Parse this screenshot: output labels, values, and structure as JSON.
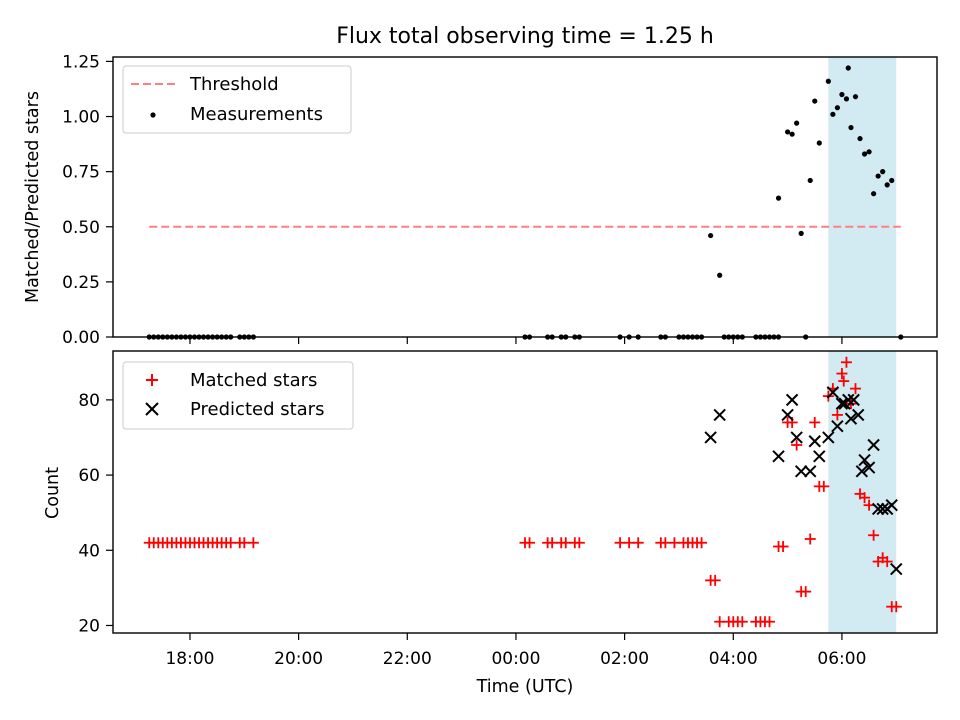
{
  "figure": {
    "title": "Flux total observing time = 1.25 h",
    "xlabel": "Time (UTC)"
  },
  "colors": {
    "threshold": "#ff7f7f",
    "measurements": "#000000",
    "matched": "#ff0000",
    "predicted": "#000000",
    "highlight": "#add8e6"
  },
  "chart_data": [
    {
      "type": "scatter",
      "ylabel": "Matched/Predicted stars",
      "ylim": [
        0,
        1.27
      ],
      "yticks": [
        0,
        0.25,
        0.5,
        0.75,
        1.0,
        1.25
      ],
      "ytick_labels": [
        "0.00",
        "0.25",
        "0.50",
        "0.75",
        "1.00",
        "1.25"
      ],
      "legend": {
        "placement": "top-left",
        "entries": [
          "Threshold",
          "Measurements"
        ]
      },
      "highlight_span": [
        "05:45",
        "07:00"
      ],
      "threshold": {
        "name": "Threshold",
        "y": 0.5,
        "x": [
          "17:15",
          "07:05"
        ]
      },
      "series": [
        {
          "name": "Measurements",
          "points": [
            [
              "17:15",
              0
            ],
            [
              "17:20",
              0
            ],
            [
              "17:25",
              0
            ],
            [
              "17:30",
              0
            ],
            [
              "17:35",
              0
            ],
            [
              "17:40",
              0
            ],
            [
              "17:45",
              0
            ],
            [
              "17:50",
              0
            ],
            [
              "17:55",
              0
            ],
            [
              "18:00",
              0
            ],
            [
              "18:05",
              0
            ],
            [
              "18:10",
              0
            ],
            [
              "18:15",
              0
            ],
            [
              "18:20",
              0
            ],
            [
              "18:25",
              0
            ],
            [
              "18:30",
              0
            ],
            [
              "18:35",
              0
            ],
            [
              "18:40",
              0
            ],
            [
              "18:45",
              0
            ],
            [
              "18:55",
              0
            ],
            [
              "19:00",
              0
            ],
            [
              "19:05",
              0
            ],
            [
              "19:10",
              0
            ],
            [
              "00:10",
              0
            ],
            [
              "00:15",
              0
            ],
            [
              "00:35",
              0
            ],
            [
              "00:40",
              0
            ],
            [
              "00:50",
              0
            ],
            [
              "00:55",
              0
            ],
            [
              "01:05",
              0
            ],
            [
              "01:10",
              0
            ],
            [
              "01:55",
              0
            ],
            [
              "02:05",
              0
            ],
            [
              "02:15",
              0
            ],
            [
              "02:40",
              0
            ],
            [
              "02:45",
              0
            ],
            [
              "03:00",
              0
            ],
            [
              "03:05",
              0
            ],
            [
              "03:10",
              0
            ],
            [
              "03:15",
              0
            ],
            [
              "03:20",
              0
            ],
            [
              "03:25",
              0
            ],
            [
              "03:35",
              0.46
            ],
            [
              "03:45",
              0.28
            ],
            [
              "03:50",
              0
            ],
            [
              "03:55",
              0
            ],
            [
              "04:00",
              0
            ],
            [
              "04:05",
              0
            ],
            [
              "04:10",
              0
            ],
            [
              "04:25",
              0
            ],
            [
              "04:30",
              0
            ],
            [
              "04:35",
              0
            ],
            [
              "04:40",
              0
            ],
            [
              "04:45",
              0
            ],
            [
              "04:50",
              0
            ],
            [
              "05:20",
              0
            ],
            [
              "04:50",
              0.63
            ],
            [
              "05:00",
              0.93
            ],
            [
              "05:05",
              0.92
            ],
            [
              "05:10",
              0.97
            ],
            [
              "05:15",
              0.47
            ],
            [
              "05:25",
              0.71
            ],
            [
              "05:30",
              1.07
            ],
            [
              "05:35",
              0.88
            ],
            [
              "05:45",
              1.16
            ],
            [
              "05:50",
              1.01
            ],
            [
              "05:55",
              1.04
            ],
            [
              "06:00",
              1.1
            ],
            [
              "06:05",
              1.08
            ],
            [
              "06:07",
              1.22
            ],
            [
              "06:10",
              0.95
            ],
            [
              "06:15",
              1.09
            ],
            [
              "06:20",
              0.9
            ],
            [
              "06:25",
              0.83
            ],
            [
              "06:30",
              0.84
            ],
            [
              "06:35",
              0.65
            ],
            [
              "06:40",
              0.73
            ],
            [
              "06:45",
              0.75
            ],
            [
              "06:50",
              0.69
            ],
            [
              "06:55",
              0.71
            ],
            [
              "07:05",
              0
            ]
          ]
        }
      ]
    },
    {
      "type": "scatter",
      "ylabel": "Count",
      "ylim": [
        18,
        93
      ],
      "yticks": [
        20,
        40,
        60,
        80
      ],
      "xticks": [
        "18:00",
        "20:00",
        "22:00",
        "00:00",
        "02:00",
        "04:00",
        "06:00"
      ],
      "xlim": [
        "16:35",
        "07:45"
      ],
      "legend": {
        "placement": "top-left",
        "entries": [
          "Matched stars",
          "Predicted stars"
        ]
      },
      "highlight_span": [
        "05:45",
        "07:00"
      ],
      "series": [
        {
          "name": "Matched stars",
          "marker": "plus",
          "points": [
            [
              "17:15",
              42
            ],
            [
              "17:20",
              42
            ],
            [
              "17:25",
              42
            ],
            [
              "17:30",
              42
            ],
            [
              "17:35",
              42
            ],
            [
              "17:40",
              42
            ],
            [
              "17:45",
              42
            ],
            [
              "17:50",
              42
            ],
            [
              "17:55",
              42
            ],
            [
              "18:00",
              42
            ],
            [
              "18:05",
              42
            ],
            [
              "18:10",
              42
            ],
            [
              "18:15",
              42
            ],
            [
              "18:20",
              42
            ],
            [
              "18:25",
              42
            ],
            [
              "18:30",
              42
            ],
            [
              "18:35",
              42
            ],
            [
              "18:40",
              42
            ],
            [
              "18:45",
              42
            ],
            [
              "18:55",
              42
            ],
            [
              "19:00",
              42
            ],
            [
              "19:10",
              42
            ],
            [
              "00:10",
              42
            ],
            [
              "00:15",
              42
            ],
            [
              "00:35",
              42
            ],
            [
              "00:40",
              42
            ],
            [
              "00:50",
              42
            ],
            [
              "00:55",
              42
            ],
            [
              "01:05",
              42
            ],
            [
              "01:10",
              42
            ],
            [
              "01:55",
              42
            ],
            [
              "02:05",
              42
            ],
            [
              "02:15",
              42
            ],
            [
              "02:40",
              42
            ],
            [
              "02:45",
              42
            ],
            [
              "02:55",
              42
            ],
            [
              "03:05",
              42
            ],
            [
              "03:10",
              42
            ],
            [
              "03:15",
              42
            ],
            [
              "03:20",
              42
            ],
            [
              "03:25",
              42
            ],
            [
              "03:35",
              32
            ],
            [
              "03:40",
              32
            ],
            [
              "03:45",
              21
            ],
            [
              "03:55",
              21
            ],
            [
              "04:00",
              21
            ],
            [
              "04:05",
              21
            ],
            [
              "04:10",
              21
            ],
            [
              "04:25",
              21
            ],
            [
              "04:30",
              21
            ],
            [
              "04:35",
              21
            ],
            [
              "04:40",
              21
            ],
            [
              "04:50",
              41
            ],
            [
              "04:55",
              41
            ],
            [
              "05:00",
              74
            ],
            [
              "05:05",
              74
            ],
            [
              "05:10",
              68
            ],
            [
              "05:15",
              29
            ],
            [
              "05:20",
              29
            ],
            [
              "05:25",
              43
            ],
            [
              "05:30",
              74
            ],
            [
              "05:35",
              57
            ],
            [
              "05:40",
              57
            ],
            [
              "05:45",
              81
            ],
            [
              "05:50",
              83
            ],
            [
              "05:55",
              76
            ],
            [
              "06:00",
              87
            ],
            [
              "06:02",
              85
            ],
            [
              "06:05",
              90
            ],
            [
              "06:10",
              79
            ],
            [
              "06:15",
              83
            ],
            [
              "06:20",
              55
            ],
            [
              "06:25",
              54
            ],
            [
              "06:30",
              52
            ],
            [
              "06:35",
              44
            ],
            [
              "06:40",
              37
            ],
            [
              "06:45",
              38
            ],
            [
              "06:50",
              37
            ],
            [
              "06:55",
              25
            ],
            [
              "07:00",
              25
            ]
          ]
        },
        {
          "name": "Predicted stars",
          "marker": "x",
          "points": [
            [
              "03:35",
              70
            ],
            [
              "03:45",
              76
            ],
            [
              "04:50",
              65
            ],
            [
              "05:00",
              76
            ],
            [
              "05:05",
              80
            ],
            [
              "05:10",
              70
            ],
            [
              "05:15",
              61
            ],
            [
              "05:25",
              61
            ],
            [
              "05:30",
              69
            ],
            [
              "05:35",
              65
            ],
            [
              "05:45",
              70
            ],
            [
              "05:50",
              82
            ],
            [
              "05:55",
              73
            ],
            [
              "06:00",
              79
            ],
            [
              "06:03",
              79
            ],
            [
              "06:07",
              80
            ],
            [
              "06:10",
              75
            ],
            [
              "06:13",
              80
            ],
            [
              "06:18",
              76
            ],
            [
              "06:22",
              61
            ],
            [
              "06:25",
              64
            ],
            [
              "06:30",
              62
            ],
            [
              "06:35",
              68
            ],
            [
              "06:40",
              51
            ],
            [
              "06:45",
              51
            ],
            [
              "06:50",
              51
            ],
            [
              "06:55",
              52
            ],
            [
              "07:00",
              35
            ]
          ]
        }
      ]
    }
  ]
}
